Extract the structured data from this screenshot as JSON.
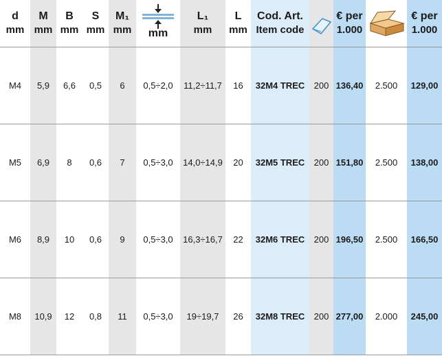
{
  "table": {
    "headers": [
      [
        "d",
        "mm"
      ],
      [
        "M",
        "mm"
      ],
      [
        "B",
        "mm"
      ],
      [
        "S",
        "mm"
      ],
      [
        "M₁",
        "mm"
      ],
      [
        "mm"
      ],
      [
        "L₁",
        "mm"
      ],
      [
        "L",
        "mm"
      ],
      [
        "Cod. Art.",
        "Item code"
      ],
      [],
      [
        "€ per",
        "1.000"
      ],
      [],
      [
        "€ per",
        "1.000"
      ]
    ],
    "rows": [
      [
        "M4",
        "5,9",
        "6,6",
        "0,5",
        "6",
        "0,5÷2,0",
        "11,2÷11,7",
        "16",
        "32M4 TREC",
        "200",
        "136,40",
        "2.500",
        "129,00"
      ],
      [
        "M5",
        "6,9",
        "8",
        "0,6",
        "7",
        "0,5÷3,0",
        "14,0÷14,9",
        "20",
        "32M5 TREC",
        "200",
        "151,80",
        "2.500",
        "138,00"
      ],
      [
        "M6",
        "8,9",
        "10",
        "0,6",
        "9",
        "0,5÷3,0",
        "16,3÷16,7",
        "22",
        "32M6 TREC",
        "200",
        "196,50",
        "2.500",
        "166,50"
      ],
      [
        "M8",
        "10,9",
        "12",
        "0,8",
        "11",
        "0,5÷3,0",
        "19÷19,7",
        "26",
        "32M8 TREC",
        "200",
        "277,00",
        "2.000",
        "245,00"
      ]
    ]
  }
}
